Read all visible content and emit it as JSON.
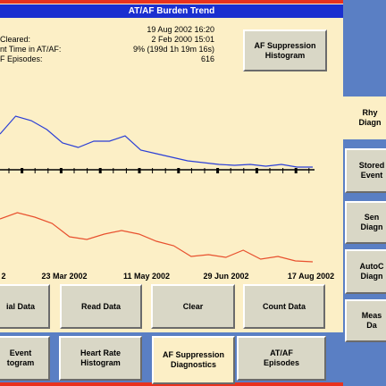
{
  "header": {
    "title": "AT/AF Burden Trend"
  },
  "info": {
    "rows": [
      {
        "value": "19 Aug 2002 16:20"
      },
      {
        "label": "Cleared:",
        "value": "2 Feb 2000 15:01"
      },
      {
        "label": "nt Time in AT/AF:",
        "value": "9% (199d 1h 19m 16s)"
      },
      {
        "label": "F Episodes:",
        "value": "616"
      }
    ]
  },
  "top_button": {
    "lines": [
      "AF Suppression",
      "Histogram"
    ]
  },
  "chart_data": {
    "type": "line",
    "x_labels": [
      "2",
      "23 Mar 2002",
      "11 May 2002",
      "29 Jun 2002",
      "17 Aug 2002"
    ],
    "series": [
      {
        "color": "#2b3fd6",
        "values": [
          40,
          60,
          55,
          45,
          30,
          25,
          32,
          32,
          38,
          22,
          18,
          14,
          10,
          8,
          6,
          5,
          6,
          4,
          6,
          3,
          3
        ],
        "ylim": [
          0,
          70
        ]
      },
      {
        "color": "#e8502e",
        "values": [
          55,
          62,
          57,
          50,
          35,
          32,
          38,
          42,
          38,
          30,
          25,
          13,
          15,
          12,
          20,
          10,
          13,
          8,
          7
        ],
        "ylim": [
          0,
          70
        ]
      }
    ]
  },
  "buttons": [
    {
      "lines": [
        "ial Data"
      ]
    },
    {
      "lines": [
        "Read Data"
      ]
    },
    {
      "lines": [
        "Clear"
      ]
    },
    {
      "lines": [
        "Count Data"
      ]
    }
  ],
  "tabs": [
    {
      "lines": [
        "Event",
        "togram"
      ]
    },
    {
      "lines": [
        "Heart Rate",
        "Histogram"
      ]
    },
    {
      "lines": [
        "AF Suppression",
        "Diagnostics"
      ],
      "active": true
    },
    {
      "lines": [
        "AT/AF",
        "Episodes"
      ]
    }
  ],
  "side_buttons": [
    {
      "lines": [
        "Rhy",
        "Diagn"
      ]
    },
    {
      "lines": [
        "Stored",
        "Event"
      ]
    },
    {
      "lines": [
        "Sen",
        "Diagn"
      ]
    },
    {
      "lines": [
        "AutoC",
        "Diagn"
      ]
    },
    {
      "lines": [
        "Meas",
        "Da"
      ]
    }
  ]
}
